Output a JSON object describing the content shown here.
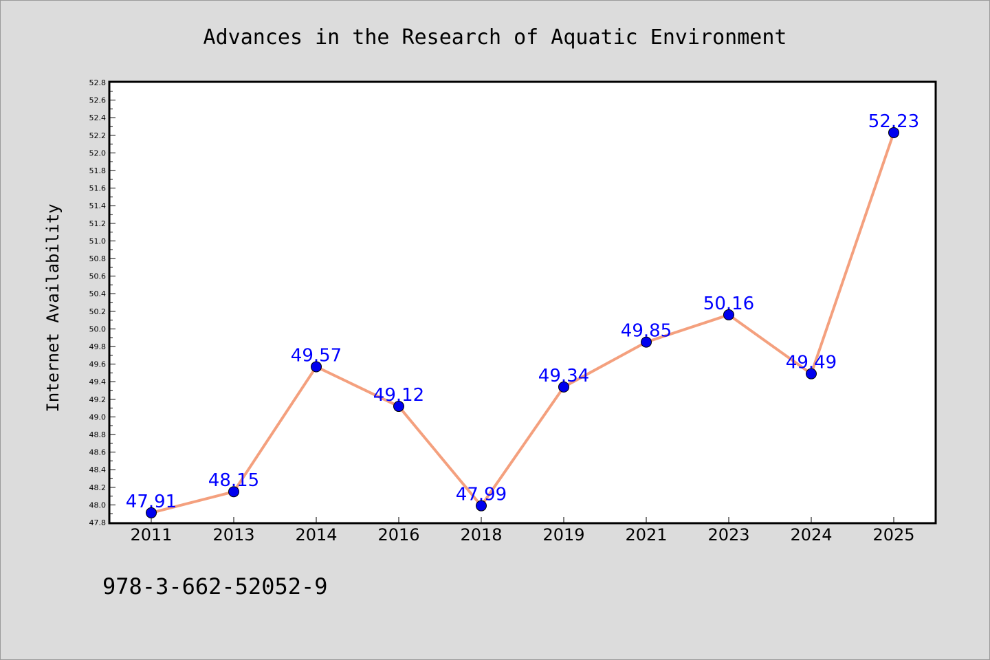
{
  "chart_data": {
    "type": "line",
    "title": "Advances in the Research of Aquatic Environment",
    "xlabel": "",
    "ylabel": "Internet Availability",
    "categories": [
      "2011",
      "2013",
      "2014",
      "2016",
      "2018",
      "2019",
      "2021",
      "2023",
      "2024",
      "2025"
    ],
    "series": [
      {
        "values": [
          47.91,
          48.15,
          49.57,
          49.12,
          47.99,
          49.34,
          49.85,
          50.16,
          49.49,
          52.23
        ],
        "labels": [
          "47.91",
          "48.15",
          "49.57",
          "49.12",
          "47.99",
          "49.34",
          "49.85",
          "50.16",
          "49.49",
          "52.23"
        ],
        "line_color": "#f4a07e",
        "marker_color": "#0000ee"
      }
    ],
    "ylim": [
      47.8,
      52.8
    ],
    "yticks": [
      "47.8",
      "48.0",
      "48.2",
      "48.4",
      "48.6",
      "48.8",
      "49.0",
      "49.2",
      "49.4",
      "49.6",
      "49.8",
      "50.0",
      "50.2",
      "50.4",
      "50.6",
      "50.8",
      "51.0",
      "51.2",
      "51.4",
      "51.6",
      "51.8",
      "52.0",
      "52.2",
      "52.4",
      "52.6",
      "52.8"
    ],
    "grid": false,
    "legend": "none",
    "label_color": "#0000ff"
  },
  "footer": {
    "isbn": "978-3-662-52052-9"
  }
}
